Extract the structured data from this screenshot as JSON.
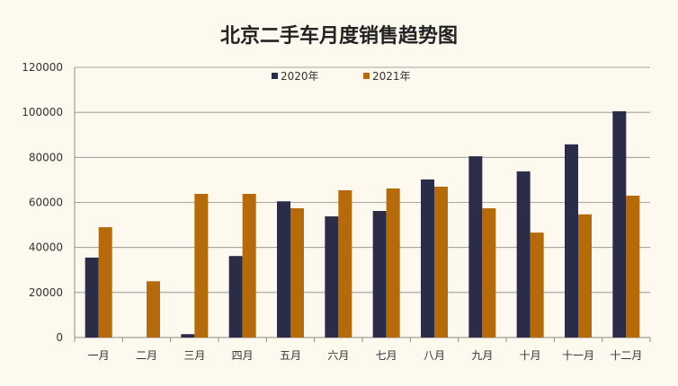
{
  "chart_data": {
    "type": "bar",
    "title": "北京二手车月度销售趋势图",
    "xlabel": "",
    "ylabel": "",
    "categories": [
      "一月",
      "二月",
      "三月",
      "四月",
      "五月",
      "六月",
      "七月",
      "八月",
      "九月",
      "十月",
      "十一月",
      "十二月"
    ],
    "series": [
      {
        "name": "2020年",
        "color": "#2b2d48",
        "values": [
          35500,
          0,
          1500,
          36200,
          60500,
          53800,
          56200,
          70200,
          80500,
          73800,
          85800,
          100500
        ]
      },
      {
        "name": "2021年",
        "color": "#b56b0c",
        "values": [
          49000,
          25000,
          63800,
          63800,
          57400,
          65400,
          66200,
          67000,
          57400,
          46600,
          54700,
          63000
        ]
      }
    ],
    "ylim": [
      0,
      120000
    ],
    "yticks": [
      0,
      20000,
      40000,
      60000,
      80000,
      100000,
      120000
    ],
    "grid": true,
    "legend_position": "top-center"
  }
}
